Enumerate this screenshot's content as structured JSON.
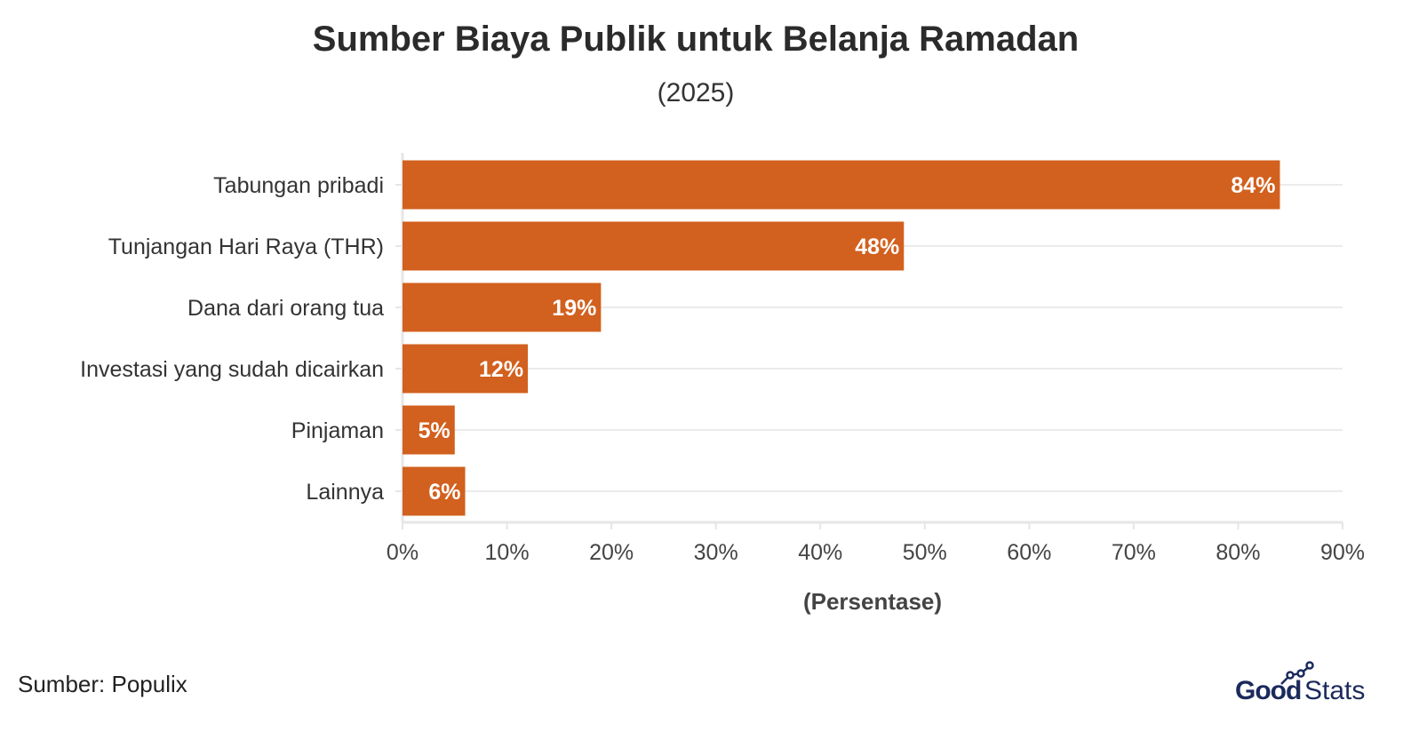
{
  "chart_data": {
    "type": "bar",
    "orientation": "horizontal",
    "title": "Sumber Biaya Publik untuk Belanja Ramadan",
    "subtitle": "(2025)",
    "categories": [
      "Tabungan pribadi",
      "Tunjangan Hari Raya (THR)",
      "Dana dari orang tua",
      "Investasi yang sudah dicairkan",
      "Pinjaman",
      "Lainnya"
    ],
    "values": [
      84,
      48,
      19,
      12,
      5,
      6
    ],
    "data_labels": [
      "84%",
      "48%",
      "19%",
      "12%",
      "5%",
      "6%"
    ],
    "xlabel": "(Persentase)",
    "ylabel": "",
    "xlim": [
      0,
      90
    ],
    "xticks": [
      0,
      10,
      20,
      30,
      40,
      50,
      60,
      70,
      80,
      90
    ],
    "xtick_labels": [
      "0%",
      "10%",
      "20%",
      "30%",
      "40%",
      "50%",
      "60%",
      "70%",
      "80%",
      "90%"
    ],
    "grid": true,
    "bar_color": "#D2601E"
  },
  "footer": {
    "source": "Sumber: Populix",
    "logo_text": "GoodStats"
  },
  "colors": {
    "logo": "#1B2A5C"
  }
}
